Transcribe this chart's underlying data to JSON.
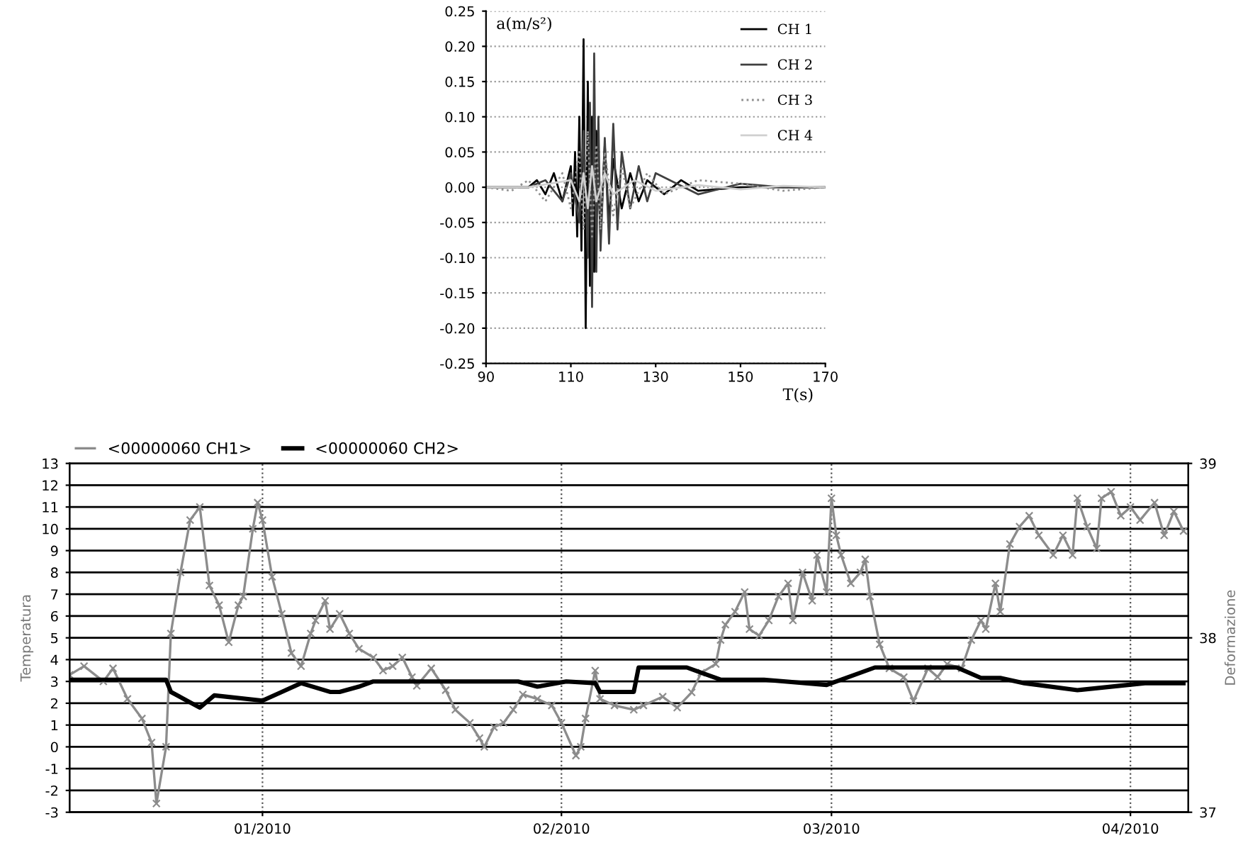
{
  "chart_data": [
    {
      "type": "line",
      "xlabel": "T(s)",
      "ylabel": "a(m/s²)",
      "xlim": [
        90,
        170
      ],
      "ylim": [
        -0.25,
        0.25
      ],
      "xticks": [
        90,
        110,
        130,
        150,
        170
      ],
      "yticks": [
        {
          "value": -0.25,
          "label": "-0.25"
        },
        {
          "value": -0.2,
          "label": "-0.20"
        },
        {
          "value": -0.15,
          "label": "-0.15"
        },
        {
          "value": -0.1,
          "label": "-0.10"
        },
        {
          "value": -0.05,
          "label": "-0.05"
        },
        {
          "value": 0,
          "label": "0.00"
        },
        {
          "value": 0.05,
          "label": "0.05"
        },
        {
          "value": 0.1,
          "label": "0.10"
        },
        {
          "value": 0.15,
          "label": "0.15"
        },
        {
          "value": 0.2,
          "label": "0.20"
        },
        {
          "value": 0.25,
          "label": "0.25"
        }
      ],
      "grid": "y",
      "legend": "top right",
      "series": [
        {
          "name": "CH 1",
          "color": "#000000",
          "x": [
            90,
            100,
            102,
            104,
            106,
            108,
            110,
            110.5,
            111,
            111.5,
            112,
            112.5,
            113,
            113.5,
            114,
            114.5,
            115,
            115.5,
            116,
            117,
            118,
            119,
            120,
            122,
            124,
            126,
            128,
            132,
            136,
            140,
            150,
            160,
            170
          ],
          "values": [
            0,
            0,
            0.01,
            -0.01,
            0.02,
            -0.02,
            0.03,
            -0.04,
            0.05,
            -0.07,
            0.1,
            -0.09,
            0.21,
            -0.2,
            0.15,
            -0.14,
            0.1,
            -0.12,
            0.08,
            -0.07,
            0.06,
            -0.05,
            0.04,
            -0.03,
            0.02,
            -0.02,
            0.01,
            -0.01,
            0.01,
            -0.005,
            0,
            0,
            0
          ]
        },
        {
          "name": "CH 2",
          "color": "#404040",
          "x": [
            90,
            100,
            104,
            108,
            110,
            112,
            113,
            114,
            114.5,
            115,
            115.5,
            116,
            116.5,
            117,
            118,
            119,
            120,
            121,
            122,
            124,
            126,
            128,
            130,
            140,
            150,
            160,
            170
          ],
          "values": [
            0,
            0,
            0.01,
            -0.02,
            0.02,
            -0.05,
            0.08,
            -0.1,
            0.12,
            -0.17,
            0.19,
            -0.12,
            0.1,
            -0.09,
            0.07,
            -0.08,
            0.09,
            -0.06,
            0.05,
            -0.03,
            0.03,
            -0.02,
            0.02,
            -0.01,
            0.005,
            0,
            0
          ]
        },
        {
          "name": "CH 3",
          "color": "#909090",
          "line_style": "dotted",
          "x": [
            90,
            96,
            100,
            104,
            108,
            110,
            112,
            113,
            114,
            115,
            116,
            117,
            118,
            120,
            122,
            124,
            128,
            132,
            140,
            150,
            160,
            170
          ],
          "values": [
            0,
            -0.005,
            0.01,
            -0.02,
            0.02,
            -0.03,
            0.05,
            -0.06,
            0.08,
            -0.07,
            0.06,
            -0.06,
            0.05,
            -0.04,
            0.03,
            -0.03,
            0.02,
            -0.01,
            0.01,
            0.005,
            -0.005,
            0
          ]
        },
        {
          "name": "CH 4",
          "color": "#d0d0d0",
          "x": [
            90,
            100,
            110,
            112,
            113,
            114,
            115,
            116,
            118,
            120,
            125,
            130,
            140,
            150,
            160,
            170
          ],
          "values": [
            0,
            0,
            0.01,
            -0.02,
            0.02,
            -0.03,
            0.03,
            -0.02,
            0.02,
            -0.01,
            0.01,
            -0.005,
            0.003,
            -0.003,
            0.002,
            0
          ]
        }
      ]
    },
    {
      "type": "line",
      "ylabel": "Temperatura",
      "y2label": "Deformazione",
      "xlim": [
        "2009-12-12",
        "2010-04-07"
      ],
      "xticks": [
        {
          "value": "2010-01-01",
          "label": "01/2010"
        },
        {
          "value": "2010-02-01",
          "label": "02/2010"
        },
        {
          "value": "2010-03-01",
          "label": "03/2010"
        },
        {
          "value": "2010-04-01",
          "label": "04/2010"
        }
      ],
      "ylim": [
        -3,
        13
      ],
      "yticks": [
        -3,
        -2,
        -1,
        0,
        1,
        2,
        3,
        4,
        5,
        6,
        7,
        8,
        9,
        10,
        11,
        12,
        13
      ],
      "y2lim": [
        37,
        39
      ],
      "y2ticks": [
        37,
        38,
        39
      ],
      "grid": true,
      "legend": "top left",
      "series": [
        {
          "name": "<00000060 CH1>",
          "color": "#8c8c8c",
          "marker": "cross",
          "x": [
            "2009-12-12",
            "2009-12-13T12:00",
            "2009-12-15T12:00",
            "2009-12-16T12:00",
            "2009-12-18",
            "2009-12-19T12:00",
            "2009-12-20T12:00",
            "2009-12-21",
            "2009-12-22",
            "2009-12-22T12:00",
            "2009-12-23T12:00",
            "2009-12-24T12:00",
            "2009-12-25T12:00",
            "2009-12-26T12:00",
            "2009-12-27T12:00",
            "2009-12-28T12:00",
            "2009-12-29T12:00",
            "2009-12-30",
            "2009-12-31",
            "2009-12-31T12:00",
            "2010-01-01",
            "2010-01-02",
            "2010-01-03",
            "2010-01-04",
            "2010-01-05",
            "2010-01-06",
            "2010-01-06T12:00",
            "2010-01-07T12:00",
            "2010-01-08",
            "2010-01-09",
            "2010-01-10",
            "2010-01-11",
            "2010-01-12T12:00",
            "2010-01-13T12:00",
            "2010-01-14T12:00",
            "2010-01-15T12:00",
            "2010-01-16T12:00",
            "2010-01-17",
            "2010-01-18T12:00",
            "2010-01-20",
            "2010-01-21",
            "2010-01-22T12:00",
            "2010-01-23T12:00",
            "2010-01-24",
            "2010-01-25",
            "2010-01-26",
            "2010-01-27",
            "2010-01-28",
            "2010-01-29T12:00",
            "2010-01-31",
            "2010-02-01",
            "2010-02-02T12:00",
            "2010-02-03",
            "2010-02-03T12:00",
            "2010-02-04T12:00",
            "2010-02-05",
            "2010-02-06T12:00",
            "2010-02-08T12:00",
            "2010-02-09T12:00",
            "2010-02-11T12:00",
            "2010-02-13",
            "2010-02-14T12:00",
            "2010-02-15T12:00",
            "2010-02-17",
            "2010-02-17T12:00",
            "2010-02-18",
            "2010-02-19",
            "2010-02-20",
            "2010-02-20T12:00",
            "2010-02-21T12:00",
            "2010-02-22T12:00",
            "2010-02-23T12:00",
            "2010-02-24T12:00",
            "2010-02-25",
            "2010-02-26",
            "2010-02-27",
            "2010-02-27T12:00",
            "2010-02-28T12:00",
            "2010-03-01",
            "2010-03-01T12:00",
            "2010-03-02",
            "2010-03-03",
            "2010-03-04",
            "2010-03-04T12:00",
            "2010-03-05",
            "2010-03-06",
            "2010-03-07",
            "2010-03-08T12:00",
            "2010-03-09T12:00",
            "2010-03-11",
            "2010-03-12",
            "2010-03-13",
            "2010-03-14T12:00",
            "2010-03-15T12:00",
            "2010-03-16T12:00",
            "2010-03-17",
            "2010-03-18",
            "2010-03-18T12:00",
            "2010-03-19T12:00",
            "2010-03-20T12:00",
            "2010-03-21T12:00",
            "2010-03-22T12:00",
            "2010-03-24",
            "2010-03-25",
            "2010-03-26",
            "2010-03-26T12:00",
            "2010-03-27T12:00",
            "2010-03-28T12:00",
            "2010-03-29",
            "2010-03-30",
            "2010-03-31",
            "2010-04-01",
            "2010-04-02",
            "2010-04-03T12:00",
            "2010-04-04T12:00",
            "2010-04-05T12:00",
            "2010-04-06T12:00"
          ],
          "values": [
            3.3,
            3.7,
            3.0,
            3.6,
            2.2,
            1.3,
            0.2,
            -2.6,
            0.0,
            5.2,
            8.0,
            10.4,
            11.0,
            7.4,
            6.5,
            4.8,
            6.5,
            6.9,
            10.0,
            11.2,
            10.4,
            7.8,
            6.1,
            4.3,
            3.7,
            5.2,
            5.8,
            6.7,
            5.4,
            6.1,
            5.2,
            4.5,
            4.1,
            3.5,
            3.7,
            4.1,
            3.2,
            2.8,
            3.6,
            2.6,
            1.7,
            1.1,
            0.4,
            0.0,
            0.9,
            1.1,
            1.7,
            2.4,
            2.2,
            1.9,
            1.1,
            -0.4,
            0.0,
            1.3,
            3.5,
            2.2,
            1.9,
            1.7,
            1.9,
            2.3,
            1.8,
            2.5,
            3.4,
            3.8,
            4.9,
            5.6,
            6.2,
            7.1,
            5.4,
            5.1,
            5.8,
            6.9,
            7.5,
            5.8,
            8.0,
            6.7,
            8.8,
            7.1,
            11.4,
            9.7,
            8.8,
            7.5,
            8.0,
            8.6,
            6.9,
            4.7,
            3.6,
            3.2,
            2.1,
            3.6,
            3.2,
            3.8,
            3.6,
            4.9,
            5.8,
            5.4,
            7.5,
            6.2,
            9.3,
            10.1,
            10.6,
            9.7,
            8.8,
            9.7,
            8.8,
            11.4,
            10.1,
            9.1,
            11.4,
            11.7,
            10.6,
            11.0,
            10.4,
            11.2,
            9.7,
            10.8,
            9.9
          ]
        },
        {
          "name": "<00000060 CH2>",
          "color": "#000000",
          "axis": "y2",
          "x": [
            "2009-12-12",
            "2009-12-22",
            "2009-12-22T12:00",
            "2009-12-25T12:00",
            "2009-12-27",
            "2010-01-01",
            "2010-01-03",
            "2010-01-05",
            "2010-01-08",
            "2010-01-09",
            "2010-01-11",
            "2010-01-12T12:00",
            "2010-01-27T12:00",
            "2010-01-29T12:00",
            "2010-02-01T12:00",
            "2010-02-04T12:00",
            "2010-02-05",
            "2010-02-08T12:00",
            "2010-02-09",
            "2010-02-14",
            "2010-02-15T12:00",
            "2010-02-17T12:00",
            "2010-02-22",
            "2010-02-28T12:00",
            "2010-03-05T12:00",
            "2010-03-14",
            "2010-03-16T12:00",
            "2010-03-18T12:00",
            "2010-03-21",
            "2010-03-26T12:00",
            "2010-04-02T12:00",
            "2010-04-06T12:00"
          ],
          "values": [
            37.76,
            37.76,
            37.69,
            37.6,
            37.67,
            37.64,
            37.69,
            37.74,
            37.69,
            37.69,
            37.72,
            37.75,
            37.75,
            37.72,
            37.75,
            37.74,
            37.69,
            37.69,
            37.83,
            37.83,
            37.8,
            37.76,
            37.76,
            37.73,
            37.83,
            37.83,
            37.77,
            37.77,
            37.74,
            37.7,
            37.74,
            37.74
          ]
        }
      ]
    }
  ]
}
